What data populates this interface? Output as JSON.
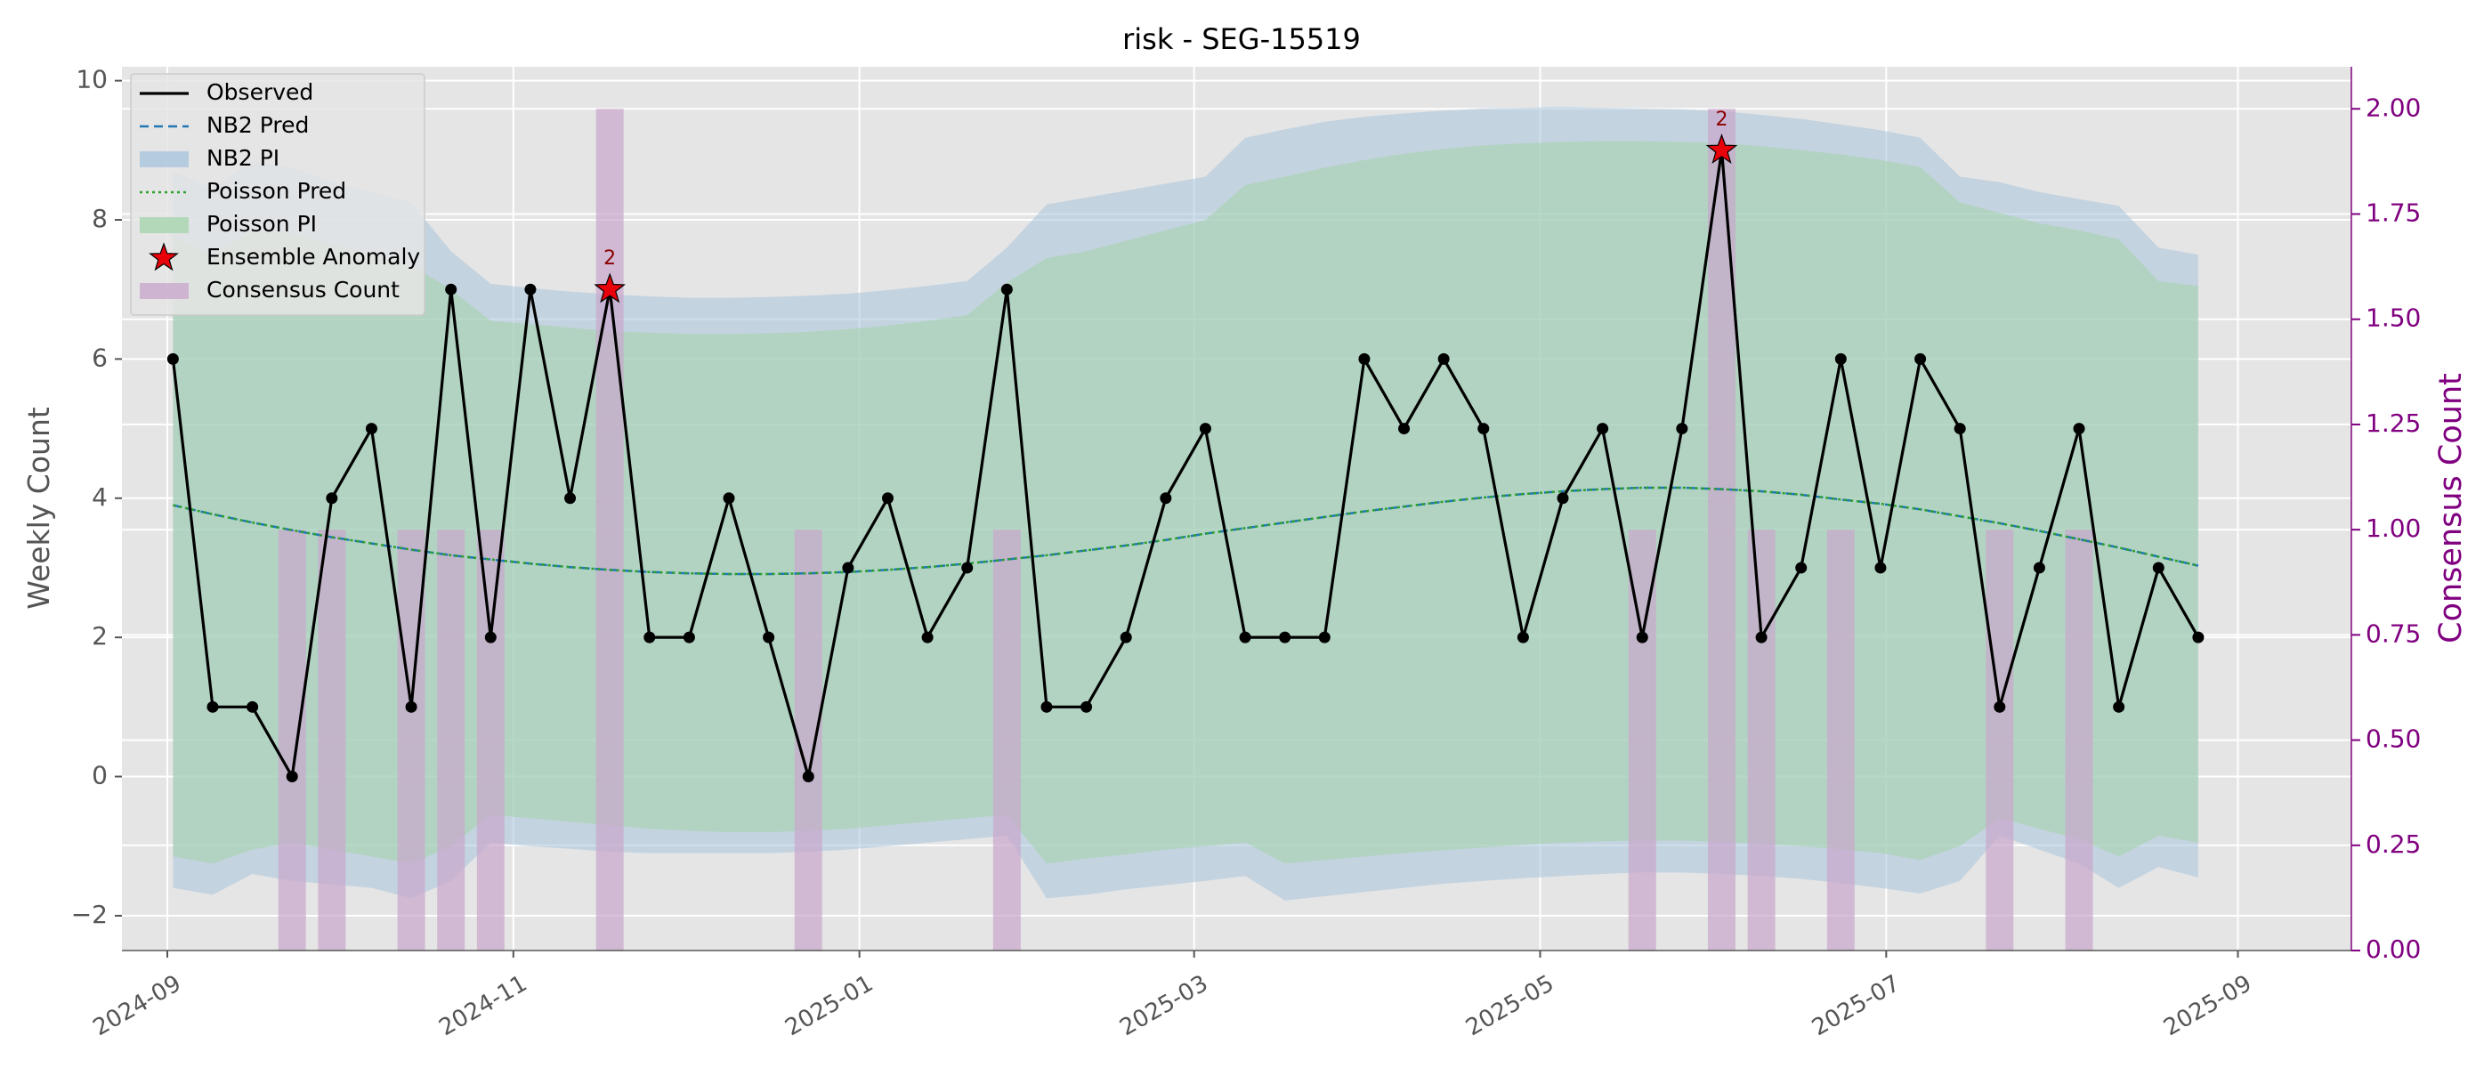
{
  "chart_data": {
    "type": "line",
    "title": "risk - SEG-15519",
    "ylabel": "Weekly Count",
    "y2label": "Consensus Count",
    "ylim": [
      -2.5,
      10.2
    ],
    "y2lim": [
      0.0,
      2.1
    ],
    "xlim": [
      "2024-08-24",
      "2025-09-21"
    ],
    "grid": true,
    "legend_position": "top-left",
    "x_ticks": [
      "2024-09",
      "2024-11",
      "2025-01",
      "2025-03",
      "2025-05",
      "2025-07",
      "2025-09"
    ],
    "x_tick_dates": [
      "2024-09-01",
      "2024-11-01",
      "2025-01-01",
      "2025-03-01",
      "2025-05-01",
      "2025-07-01",
      "2025-09-01"
    ],
    "y_ticks": [
      "−2",
      "0",
      "2",
      "4",
      "6",
      "8",
      "10"
    ],
    "y_tick_values": [
      -2,
      0,
      2,
      4,
      6,
      8,
      10
    ],
    "y2_ticks": [
      "0.00",
      "0.25",
      "0.50",
      "0.75",
      "1.00",
      "1.25",
      "1.50",
      "1.75",
      "2.00"
    ],
    "y2_tick_values": [
      0,
      0.25,
      0.5,
      0.75,
      1.0,
      1.25,
      1.5,
      1.75,
      2.0
    ],
    "legend": [
      "Observed",
      "NB2 Pred",
      "NB2 PI",
      "Poisson Pred",
      "Poisson PI",
      "Ensemble Anomaly",
      "Consensus Count"
    ],
    "colors": {
      "observed": "#000000",
      "nb2_pred": "#1f77b4",
      "nb2_pi": "#a9c4dc",
      "poisson_pred": "#2ca02c",
      "poisson_pi": "#a6d4ae",
      "anomaly": "#e8000b",
      "consensus": "#c9a7cc",
      "y2_axis": "#800080",
      "plot_bg": "#e5e5e5"
    },
    "x": [
      "2024-09-02",
      "2024-09-09",
      "2024-09-16",
      "2024-09-23",
      "2024-09-30",
      "2024-10-07",
      "2024-10-14",
      "2024-10-21",
      "2024-10-28",
      "2024-11-04",
      "2024-11-11",
      "2024-11-18",
      "2024-11-25",
      "2024-12-02",
      "2024-12-09",
      "2024-12-16",
      "2024-12-23",
      "2024-12-30",
      "2025-01-06",
      "2025-01-13",
      "2025-01-20",
      "2025-01-27",
      "2025-02-03",
      "2025-02-10",
      "2025-02-17",
      "2025-02-24",
      "2025-03-03",
      "2025-03-10",
      "2025-03-17",
      "2025-03-24",
      "2025-03-31",
      "2025-04-07",
      "2025-04-14",
      "2025-04-21",
      "2025-04-28",
      "2025-05-05",
      "2025-05-12",
      "2025-05-19",
      "2025-05-26",
      "2025-06-02",
      "2025-06-09",
      "2025-06-16",
      "2025-06-23",
      "2025-06-30",
      "2025-07-07",
      "2025-07-14",
      "2025-07-21",
      "2025-07-28",
      "2025-08-04",
      "2025-08-11",
      "2025-08-18",
      "2025-08-25"
    ],
    "series": [
      {
        "name": "Observed",
        "values": [
          6,
          1,
          1,
          0,
          4,
          5,
          1,
          7,
          2,
          7,
          4,
          7,
          2,
          2,
          4,
          2,
          0,
          3,
          4,
          2,
          3,
          7,
          1,
          1,
          2,
          4,
          5,
          2,
          2,
          2,
          6,
          5,
          6,
          5,
          2,
          4,
          5,
          2,
          5,
          9,
          2,
          3,
          6,
          3,
          6,
          5,
          1,
          3,
          5,
          1,
          3,
          2
        ]
      },
      {
        "name": "NB2 Pred",
        "values": [
          3.9,
          3.77,
          3.65,
          3.54,
          3.44,
          3.35,
          3.26,
          3.18,
          3.12,
          3.06,
          3.01,
          2.97,
          2.94,
          2.92,
          2.91,
          2.91,
          2.92,
          2.94,
          2.97,
          3.01,
          3.06,
          3.12,
          3.18,
          3.25,
          3.32,
          3.4,
          3.49,
          3.57,
          3.65,
          3.73,
          3.81,
          3.88,
          3.95,
          4.01,
          4.06,
          4.1,
          4.13,
          4.15,
          4.15,
          4.13,
          4.1,
          4.05,
          3.98,
          3.92,
          3.84,
          3.74,
          3.64,
          3.53,
          3.41,
          3.29,
          3.16,
          3.03
        ]
      },
      {
        "name": "NB2 PI",
        "lower": [
          -1.6,
          -1.7,
          -1.4,
          -1.5,
          -1.55,
          -1.6,
          -1.75,
          -1.5,
          -0.95,
          -1.0,
          -1.04,
          -1.08,
          -1.1,
          -1.1,
          -1.1,
          -1.1,
          -1.08,
          -1.05,
          -1.0,
          -0.95,
          -0.9,
          -0.85,
          -1.75,
          -1.7,
          -1.62,
          -1.56,
          -1.5,
          -1.43,
          -1.78,
          -1.72,
          -1.66,
          -1.6,
          -1.54,
          -1.5,
          -1.46,
          -1.43,
          -1.4,
          -1.38,
          -1.38,
          -1.4,
          -1.43,
          -1.47,
          -1.53,
          -1.6,
          -1.68,
          -1.5,
          -0.85,
          -1.05,
          -1.25,
          -1.6,
          -1.3,
          -1.45
        ],
        "upper": [
          8.7,
          8.45,
          8.85,
          8.75,
          8.55,
          8.4,
          8.25,
          7.55,
          7.08,
          7.02,
          6.97,
          6.93,
          6.9,
          6.88,
          6.88,
          6.89,
          6.91,
          6.94,
          6.99,
          7.05,
          7.12,
          7.6,
          8.22,
          8.32,
          8.42,
          8.52,
          8.62,
          9.18,
          9.3,
          9.41,
          9.48,
          9.53,
          9.57,
          9.6,
          9.61,
          9.62,
          9.61,
          9.6,
          9.59,
          9.56,
          9.51,
          9.45,
          9.37,
          9.29,
          9.18,
          8.62,
          8.54,
          8.4,
          8.3,
          8.2,
          7.6,
          7.5
        ]
      },
      {
        "name": "Poisson Pred",
        "values": [
          3.9,
          3.77,
          3.65,
          3.54,
          3.44,
          3.35,
          3.26,
          3.18,
          3.12,
          3.06,
          3.01,
          2.97,
          2.94,
          2.92,
          2.91,
          2.91,
          2.92,
          2.94,
          2.97,
          3.01,
          3.06,
          3.12,
          3.18,
          3.25,
          3.32,
          3.4,
          3.49,
          3.57,
          3.65,
          3.73,
          3.81,
          3.88,
          3.95,
          4.01,
          4.06,
          4.1,
          4.13,
          4.15,
          4.15,
          4.13,
          4.1,
          4.05,
          3.98,
          3.92,
          3.84,
          3.74,
          3.64,
          3.53,
          3.41,
          3.29,
          3.16,
          3.03
        ]
      },
      {
        "name": "Poisson PI",
        "lower": [
          -1.15,
          -1.25,
          -1.05,
          -0.95,
          -1.05,
          -1.15,
          -1.25,
          -1.0,
          -0.55,
          -0.6,
          -0.65,
          -0.7,
          -0.75,
          -0.78,
          -0.8,
          -0.8,
          -0.78,
          -0.75,
          -0.7,
          -0.65,
          -0.6,
          -0.55,
          -1.25,
          -1.18,
          -1.12,
          -1.05,
          -1.0,
          -0.95,
          -1.25,
          -1.2,
          -1.15,
          -1.1,
          -1.06,
          -1.02,
          -0.98,
          -0.95,
          -0.93,
          -0.92,
          -0.92,
          -0.94,
          -0.97,
          -1.0,
          -1.05,
          -1.1,
          -1.2,
          -1.0,
          -0.6,
          -0.75,
          -0.9,
          -1.15,
          -0.85,
          -0.95
        ],
        "upper": [
          7.75,
          7.5,
          7.85,
          7.8,
          7.65,
          7.5,
          7.35,
          7.0,
          6.55,
          6.5,
          6.45,
          6.4,
          6.38,
          6.36,
          6.36,
          6.37,
          6.39,
          6.43,
          6.48,
          6.55,
          6.63,
          7.1,
          7.45,
          7.55,
          7.7,
          7.85,
          8.0,
          8.5,
          8.62,
          8.75,
          8.86,
          8.95,
          9.02,
          9.07,
          9.1,
          9.12,
          9.13,
          9.13,
          9.12,
          9.1,
          9.06,
          9.0,
          8.94,
          8.86,
          8.76,
          8.25,
          8.1,
          7.95,
          7.85,
          7.72,
          7.12,
          7.05
        ]
      }
    ],
    "anomalies": [
      {
        "x": "2024-11-18",
        "y": 7,
        "label": "2"
      },
      {
        "x": "2025-06-02",
        "y": 9,
        "label": "2"
      }
    ],
    "consensus_bars": [
      {
        "x": "2024-09-23",
        "value": 1
      },
      {
        "x": "2024-09-30",
        "value": 1
      },
      {
        "x": "2024-10-14",
        "value": 1
      },
      {
        "x": "2024-10-21",
        "value": 1
      },
      {
        "x": "2024-10-28",
        "value": 1
      },
      {
        "x": "2024-11-18",
        "value": 2
      },
      {
        "x": "2024-12-23",
        "value": 1
      },
      {
        "x": "2025-01-27",
        "value": 1
      },
      {
        "x": "2025-05-19",
        "value": 1
      },
      {
        "x": "2025-06-02",
        "value": 2
      },
      {
        "x": "2025-06-09",
        "value": 1
      },
      {
        "x": "2025-06-23",
        "value": 1
      },
      {
        "x": "2025-07-21",
        "value": 1
      },
      {
        "x": "2025-08-04",
        "value": 1
      }
    ]
  }
}
